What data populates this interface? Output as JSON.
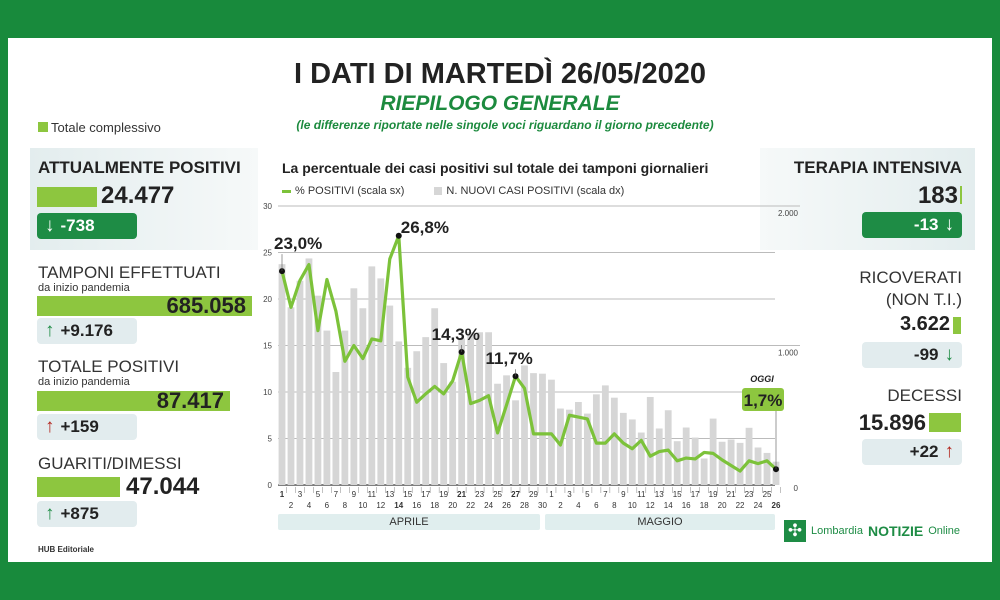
{
  "header": {
    "title": "I DATI DI MARTEDÌ 26/05/2020",
    "subtitle": "RIEPILOGO GENERALE",
    "note": "(le differenze riportate nelle singole voci riguardano il giorno precedente)"
  },
  "legend_total": "Totale complessivo",
  "colors": {
    "frame": "#188a3c",
    "bar_green": "#8dc63f",
    "badge_dark": "#1e8c45",
    "up_red": "#b3261e"
  },
  "left": {
    "attualmente": {
      "label": "ATTUALMENTE POSITIVI",
      "value": "24.477",
      "delta": "-738",
      "arrow": "down"
    },
    "tamponi": {
      "label": "TAMPONI EFFETTUATI",
      "sublabel": "da inizio pandemia",
      "value": "685.058",
      "delta": "+9.176",
      "arrow": "up"
    },
    "totale": {
      "label": "TOTALE POSITIVI",
      "sublabel": "da inizio pandemia",
      "value": "87.417",
      "delta": "+159",
      "arrow": "up"
    },
    "guariti": {
      "label": "GUARITI/DIMESSI",
      "value": "47.044",
      "delta": "+875",
      "arrow": "up"
    },
    "credit": "HUB Editoriale"
  },
  "right": {
    "terapia": {
      "label": "TERAPIA INTENSIVA",
      "value": "183",
      "delta": "-13",
      "arrow": "down"
    },
    "ricoverati": {
      "label1": "RICOVERATI",
      "label2": "(NON T.I.)",
      "value": "3.622",
      "delta": "-99",
      "arrow": "down"
    },
    "decessi": {
      "label": "DECESSI",
      "value": "15.896",
      "delta": "+22",
      "arrow": "up"
    }
  },
  "logo": {
    "text1": "Lombardia",
    "text2": "NOTIZIE",
    "text3": "Online"
  },
  "chart_data": {
    "type": "bar+line",
    "title": "La percentuale dei casi positivi sul totale dei tamponi giornalieri",
    "legend": [
      "% POSITIVI (scala sx)",
      "N. NUOVI CASI POSITIVI (scala dx)"
    ],
    "y_left": {
      "ticks": [
        "0",
        "5",
        "10",
        "15",
        "20",
        "25",
        "30"
      ],
      "range": [
        0,
        30
      ]
    },
    "y_right": {
      "ticks": [
        "0",
        "1.000",
        "2.000"
      ],
      "range": [
        0,
        2000
      ]
    },
    "months": [
      "APRILE",
      "MAGGIO"
    ],
    "x_labels": [
      "1",
      "2",
      "3",
      "4",
      "5",
      "6",
      "7",
      "8",
      "9",
      "10",
      "11",
      "12",
      "13",
      "14",
      "15",
      "16",
      "17",
      "18",
      "19",
      "20",
      "21",
      "22",
      "23",
      "24",
      "25",
      "26",
      "27",
      "28",
      "29",
      "30",
      "1",
      "2",
      "3",
      "4",
      "5",
      "6",
      "7",
      "8",
      "9",
      "10",
      "11",
      "12",
      "13",
      "14",
      "15",
      "16",
      "17",
      "18",
      "19",
      "20",
      "21",
      "22",
      "23",
      "24",
      "25",
      "26"
    ],
    "bold_labels": [
      0,
      13,
      20,
      26,
      55
    ],
    "series": [
      {
        "name": "% POSITIVI (scala sx)",
        "type": "line",
        "values": [
          23.0,
          19.1,
          22.0,
          23.7,
          16.6,
          22.1,
          18.7,
          13.3,
          15.0,
          13.6,
          15.7,
          15.5,
          24.3,
          26.8,
          11.6,
          8.9,
          9.8,
          10.6,
          9.8,
          11.2,
          14.3,
          8.75,
          9.1,
          9.6,
          5.6,
          8.6,
          11.7,
          10.4,
          5.5,
          5.5,
          5.5,
          4.3,
          7.5,
          7.3,
          7.1,
          4.5,
          4.5,
          5.5,
          4.5,
          3.9,
          4.8,
          3.1,
          3.6,
          3.75,
          2.6,
          2.9,
          2.8,
          3.5,
          3.4,
          2.7,
          2.1,
          1.5,
          2.6,
          2.3,
          2.6,
          1.7
        ]
      },
      {
        "name": "N. NUOVI CASI POSITIVI (scala dx)",
        "type": "bar",
        "values": [
          1583,
          1274,
          1464,
          1624,
          1357,
          1107,
          810,
          1107,
          1410,
          1267,
          1567,
          1481,
          1286,
          1029,
          840,
          959,
          1060,
          1267,
          874,
          740,
          1050,
          1095,
          1095,
          1095,
          726,
          786,
          607,
          857,
          802,
          798,
          755,
          548,
          540,
          595,
          512,
          650,
          714,
          626,
          517,
          470,
          376,
          631,
          405,
          536,
          314,
          412,
          340,
          190,
          476,
          310,
          326,
          302,
          410,
          269,
          230,
          167
        ]
      }
    ],
    "annotations": [
      {
        "index": 0,
        "text": "23,0%"
      },
      {
        "index": 13,
        "text": "26,8%"
      },
      {
        "index": 20,
        "text": "14,3%"
      },
      {
        "index": 26,
        "text": "11,7%"
      },
      {
        "index": 55,
        "text": "1,7%",
        "label": "OGGI"
      }
    ]
  }
}
